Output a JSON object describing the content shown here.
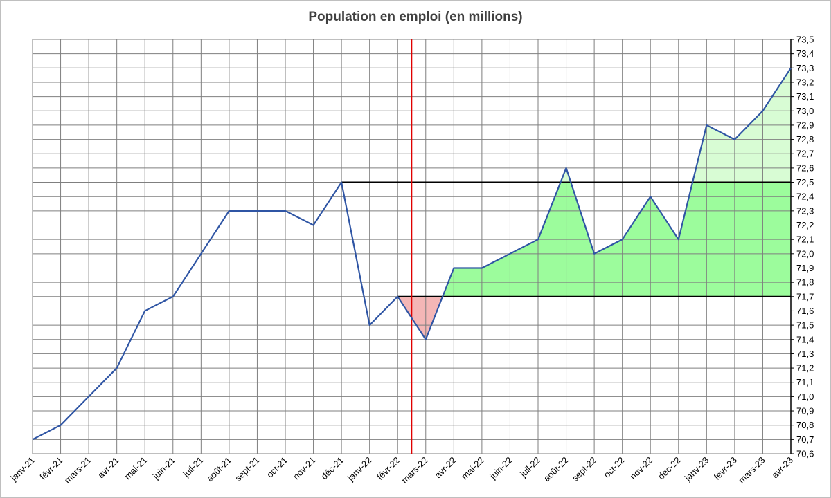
{
  "chart_data": {
    "type": "line",
    "title": "Population en emploi (en millions)",
    "xlabel": "",
    "ylabel": "",
    "ylim": [
      70.6,
      73.5
    ],
    "grid": true,
    "y_axis_side": "right",
    "y_tick_labels": [
      "70,6",
      "70,7",
      "70,8",
      "70,9",
      "71,0",
      "71,1",
      "71,2",
      "71,3",
      "71,4",
      "71,5",
      "71,6",
      "71,7",
      "71,8",
      "71,9",
      "72,0",
      "72,1",
      "72,2",
      "72,3",
      "72,4",
      "72,5",
      "72,6",
      "72,7",
      "72,8",
      "72,9",
      "73,0",
      "73,1",
      "73,2",
      "73,3",
      "73,4",
      "73,5"
    ],
    "categories": [
      "janv-21",
      "févr-21",
      "mars-21",
      "avr-21",
      "mai-21",
      "juin-21",
      "juil-21",
      "août-21",
      "sept-21",
      "oct-21",
      "nov-21",
      "déc-21",
      "janv-22",
      "févr-22",
      "mars-22",
      "avr-22",
      "mai-22",
      "juin-22",
      "juil-22",
      "août-22",
      "sept-22",
      "oct-22",
      "nov-22",
      "déc-22",
      "janv-23",
      "févr-23",
      "mars-23",
      "avr-23"
    ],
    "series": [
      {
        "values": [
          70.7,
          70.8,
          71.0,
          71.2,
          71.6,
          71.7,
          72.0,
          72.3,
          72.3,
          72.3,
          72.2,
          72.5,
          71.5,
          71.7,
          71.4,
          71.9,
          71.9,
          72.0,
          72.1,
          72.6,
          72.0,
          72.1,
          72.4,
          72.1,
          72.9,
          72.8,
          73.0,
          73.3
        ]
      }
    ],
    "reference_lines": [
      {
        "y": 72.5,
        "x_start": "déc-21",
        "x_end": "avr-23",
        "color": "#000000"
      },
      {
        "y": 71.7,
        "x_start": "févr-22",
        "x_end": "avr-23",
        "color": "#000000"
      }
    ],
    "vertical_marker": {
      "between": [
        "févr-22",
        "mars-22"
      ],
      "color": "#e00000"
    },
    "colors": {
      "line": "#2f55a4",
      "grid": "#7f7f7f",
      "area_below_baseline": "#f4b6b6",
      "area_above_baseline": "#9cfc9c",
      "area_above_peak": "#d8fcd4"
    }
  }
}
